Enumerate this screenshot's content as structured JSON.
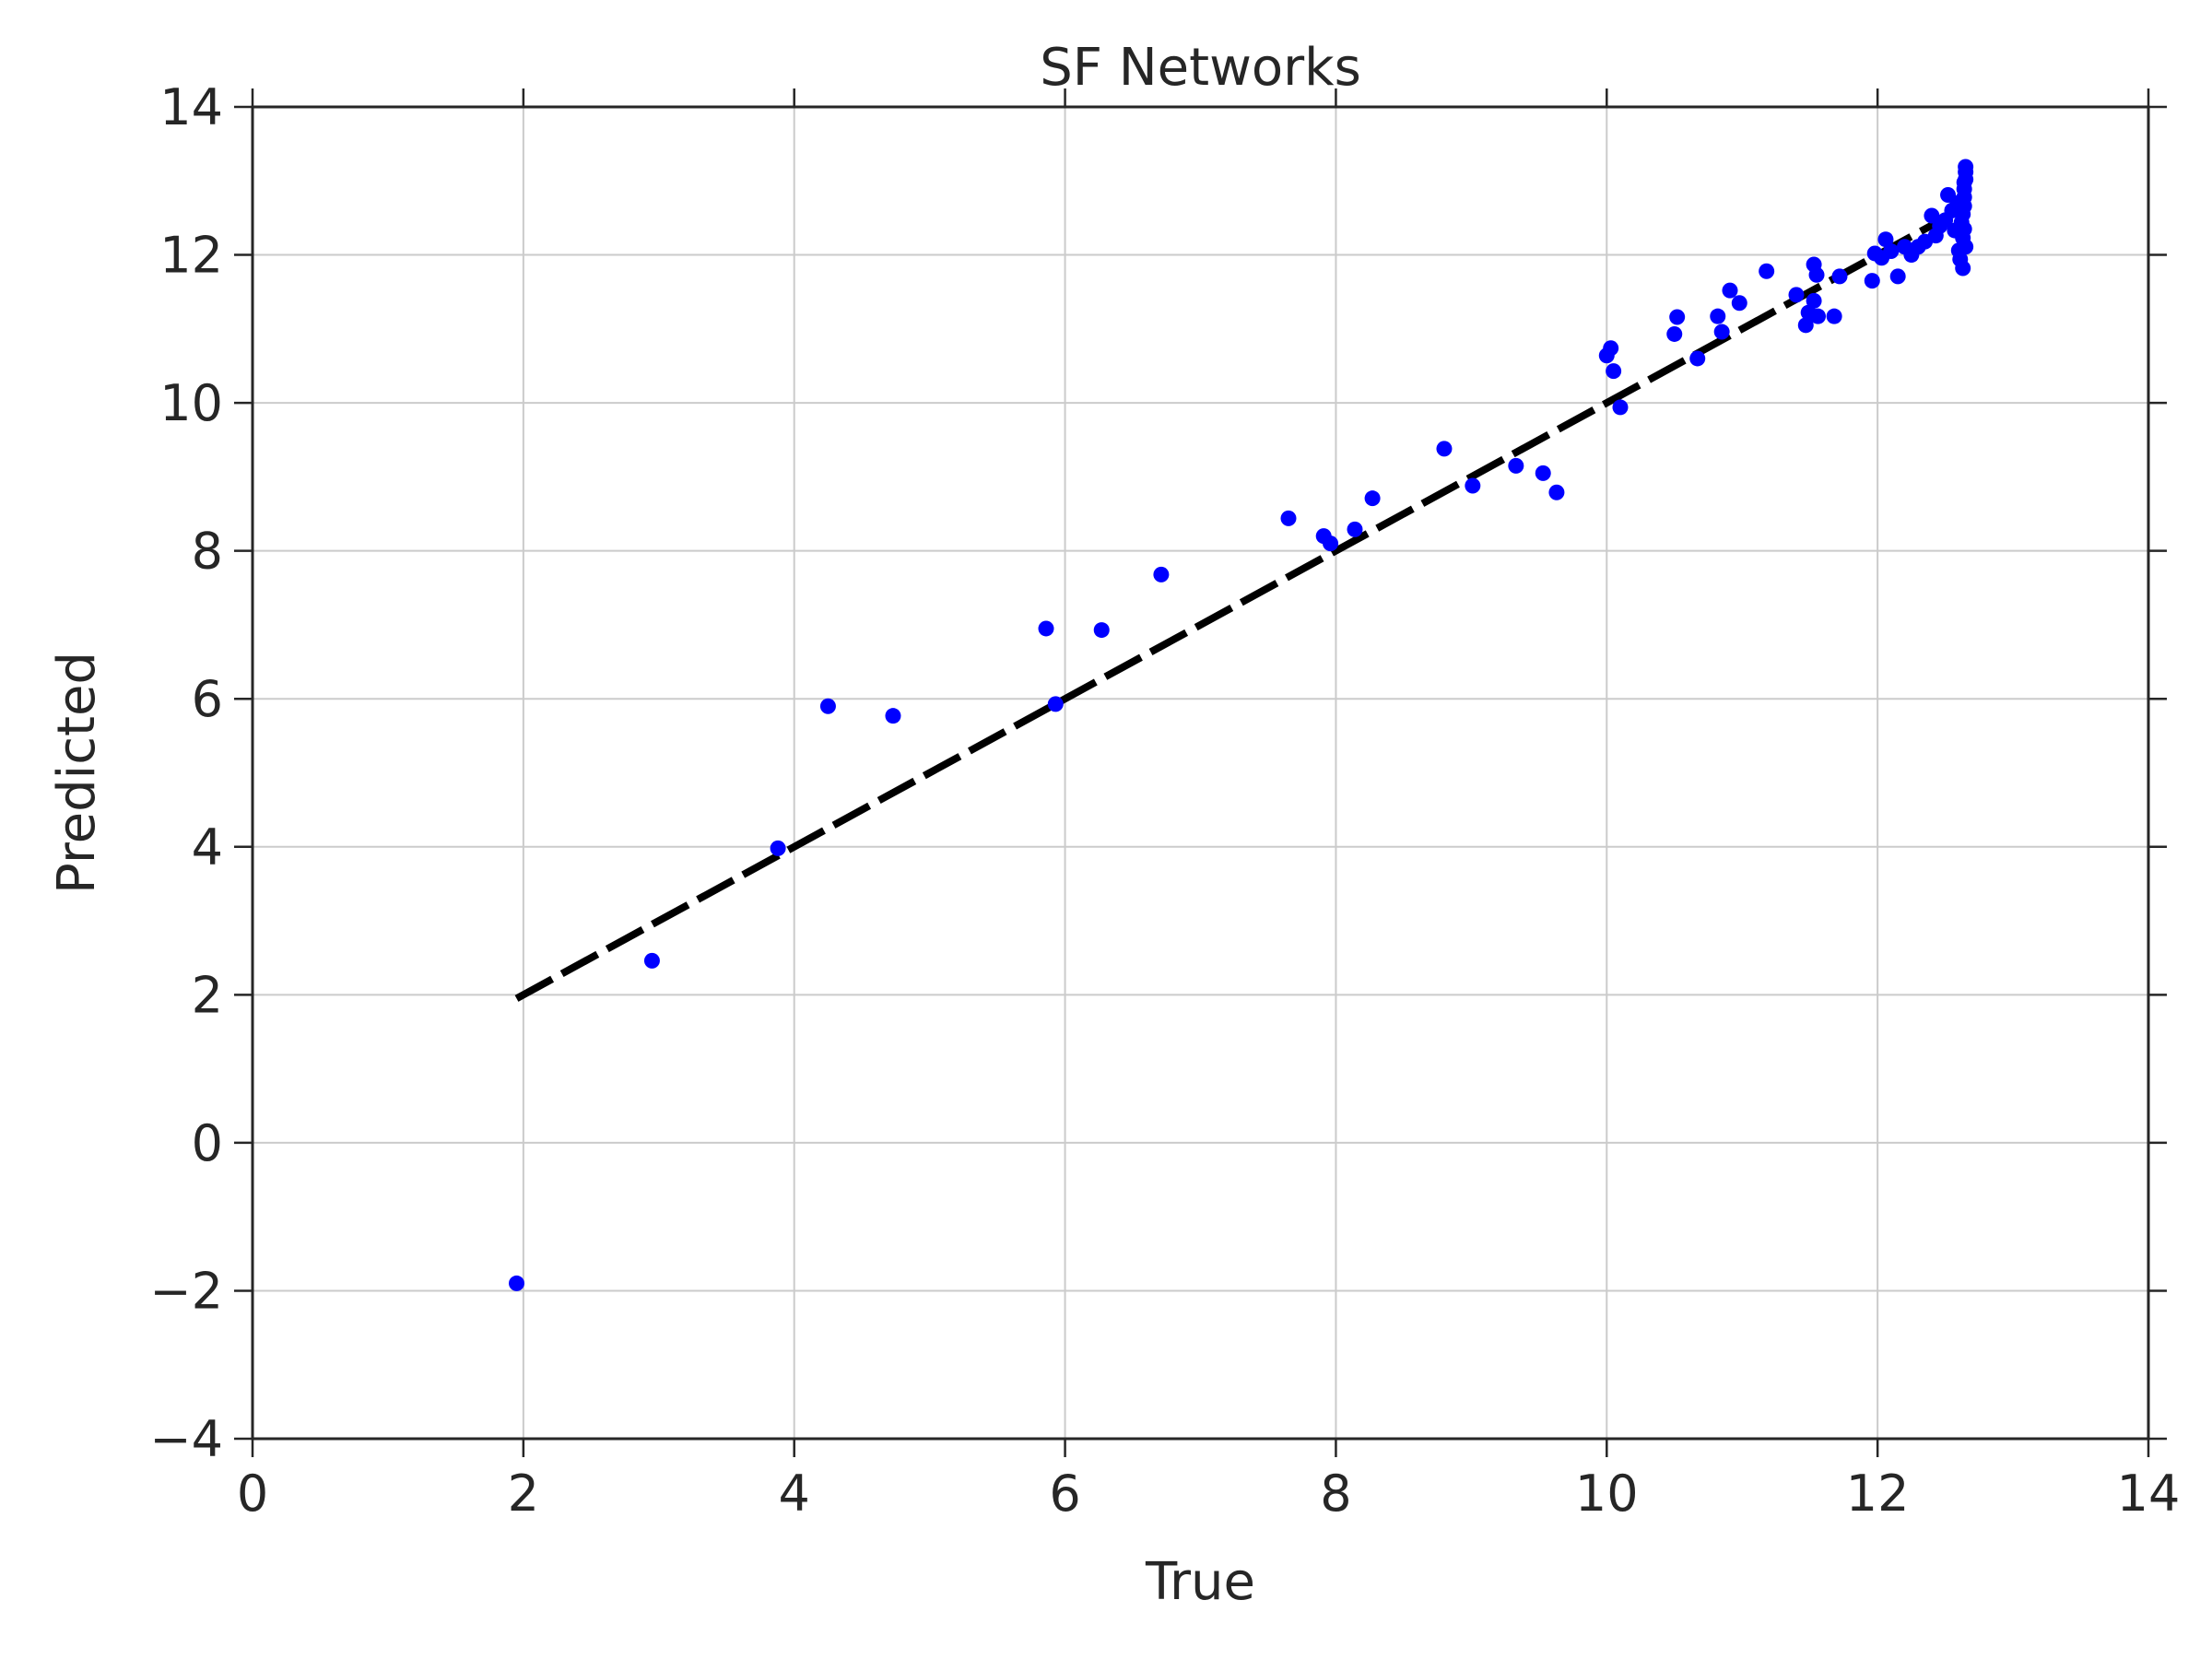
{
  "chart_data": {
    "type": "scatter",
    "title": "SF Networks",
    "xlabel": "True",
    "ylabel": "Predicted",
    "xlim": [
      0,
      14
    ],
    "ylim": [
      -4,
      14
    ],
    "xticks": [
      0,
      2,
      4,
      6,
      8,
      10,
      12,
      14
    ],
    "yticks": [
      -4,
      -2,
      0,
      2,
      4,
      6,
      8,
      10,
      12,
      14
    ],
    "xtick_labels": [
      "0",
      "2",
      "4",
      "6",
      "8",
      "10",
      "12",
      "14"
    ],
    "ytick_labels": [
      "−4",
      "−2",
      "0",
      "2",
      "4",
      "6",
      "8",
      "10",
      "12",
      "14"
    ],
    "grid": true,
    "colors": {
      "points": "#0000ff",
      "line": "#000000",
      "grid": "#cbcbcb",
      "axes": "#262626"
    },
    "series": [
      {
        "type": "scatter",
        "points": [
          [
            1.95,
            -1.9
          ],
          [
            2.95,
            2.46
          ],
          [
            3.88,
            3.98
          ],
          [
            4.25,
            5.9
          ],
          [
            4.73,
            5.77
          ],
          [
            5.86,
            6.95
          ],
          [
            5.93,
            5.93
          ],
          [
            6.27,
            6.93
          ],
          [
            6.71,
            7.68
          ],
          [
            7.65,
            8.44
          ],
          [
            7.91,
            8.2
          ],
          [
            7.96,
            8.1
          ],
          [
            8.14,
            8.29
          ],
          [
            8.27,
            8.71
          ],
          [
            8.8,
            9.38
          ],
          [
            9.01,
            8.88
          ],
          [
            9.33,
            9.15
          ],
          [
            9.53,
            9.05
          ],
          [
            9.63,
            8.79
          ],
          [
            10.0,
            10.64
          ],
          [
            10.03,
            10.74
          ],
          [
            10.05,
            10.43
          ],
          [
            10.1,
            9.94
          ],
          [
            10.5,
            10.93
          ],
          [
            10.52,
            11.16
          ],
          [
            10.67,
            10.6
          ],
          [
            10.82,
            11.17
          ],
          [
            10.85,
            10.96
          ],
          [
            10.91,
            11.52
          ],
          [
            10.98,
            11.35
          ],
          [
            11.18,
            11.78
          ],
          [
            11.4,
            11.46
          ],
          [
            11.47,
            11.05
          ],
          [
            11.49,
            11.22
          ],
          [
            11.53,
            11.38
          ],
          [
            11.53,
            11.87
          ],
          [
            11.55,
            11.73
          ],
          [
            11.56,
            11.17
          ],
          [
            11.68,
            11.17
          ],
          [
            11.72,
            11.71
          ],
          [
            11.96,
            11.65
          ],
          [
            11.98,
            12.02
          ],
          [
            12.03,
            11.96
          ],
          [
            12.06,
            12.21
          ],
          [
            12.1,
            12.05
          ],
          [
            12.15,
            11.71
          ],
          [
            12.2,
            12.11
          ],
          [
            12.25,
            12.0
          ],
          [
            12.3,
            12.11
          ],
          [
            12.35,
            12.18
          ],
          [
            12.4,
            12.53
          ],
          [
            12.43,
            12.26
          ],
          [
            12.46,
            12.39
          ],
          [
            12.5,
            12.47
          ],
          [
            12.52,
            12.81
          ],
          [
            12.55,
            12.6
          ],
          [
            12.57,
            12.33
          ],
          [
            12.59,
            12.7
          ],
          [
            12.6,
            12.06
          ],
          [
            12.61,
            11.94
          ],
          [
            12.62,
            12.44
          ],
          [
            12.63,
            11.82
          ],
          [
            12.63,
            12.23
          ],
          [
            12.63,
            12.55
          ],
          [
            12.64,
            12.66
          ],
          [
            12.64,
            12.78
          ],
          [
            12.64,
            12.89
          ],
          [
            12.65,
            13.02
          ],
          [
            12.65,
            13.12
          ],
          [
            12.65,
            13.19
          ],
          [
            12.65,
            12.11
          ],
          [
            12.64,
            12.35
          ],
          [
            12.64,
            12.98
          ]
        ]
      },
      {
        "type": "line",
        "style": "dashed",
        "points": [
          [
            1.95,
            1.95
          ],
          [
            12.65,
            12.65
          ]
        ]
      }
    ]
  }
}
